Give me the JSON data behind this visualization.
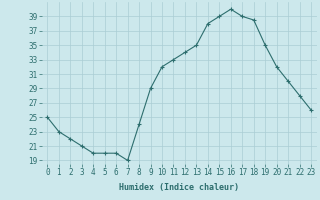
{
  "x": [
    0,
    1,
    2,
    3,
    4,
    5,
    6,
    7,
    8,
    9,
    10,
    11,
    12,
    13,
    14,
    15,
    16,
    17,
    18,
    19,
    20,
    21,
    22,
    23
  ],
  "y": [
    25,
    23,
    22,
    21,
    20,
    20,
    20,
    19,
    24,
    29,
    32,
    33,
    34,
    35,
    38,
    39,
    40,
    39,
    38.5,
    35,
    32,
    30,
    28,
    26
  ],
  "line_color": "#2d6e6e",
  "marker": "+",
  "marker_size": 3,
  "marker_linewidth": 0.8,
  "background_color": "#cce8ec",
  "grid_color": "#aacdd4",
  "xlabel": "Humidex (Indice chaleur)",
  "xlim": [
    -0.5,
    23.5
  ],
  "ylim": [
    18.5,
    41
  ],
  "yticks": [
    19,
    21,
    23,
    25,
    27,
    29,
    31,
    33,
    35,
    37,
    39
  ],
  "xticks": [
    0,
    1,
    2,
    3,
    4,
    5,
    6,
    7,
    8,
    9,
    10,
    11,
    12,
    13,
    14,
    15,
    16,
    17,
    18,
    19,
    20,
    21,
    22,
    23
  ],
  "tick_color": "#2d6e6e",
  "label_fontsize": 6,
  "tick_fontsize": 5.5,
  "line_width": 0.8
}
